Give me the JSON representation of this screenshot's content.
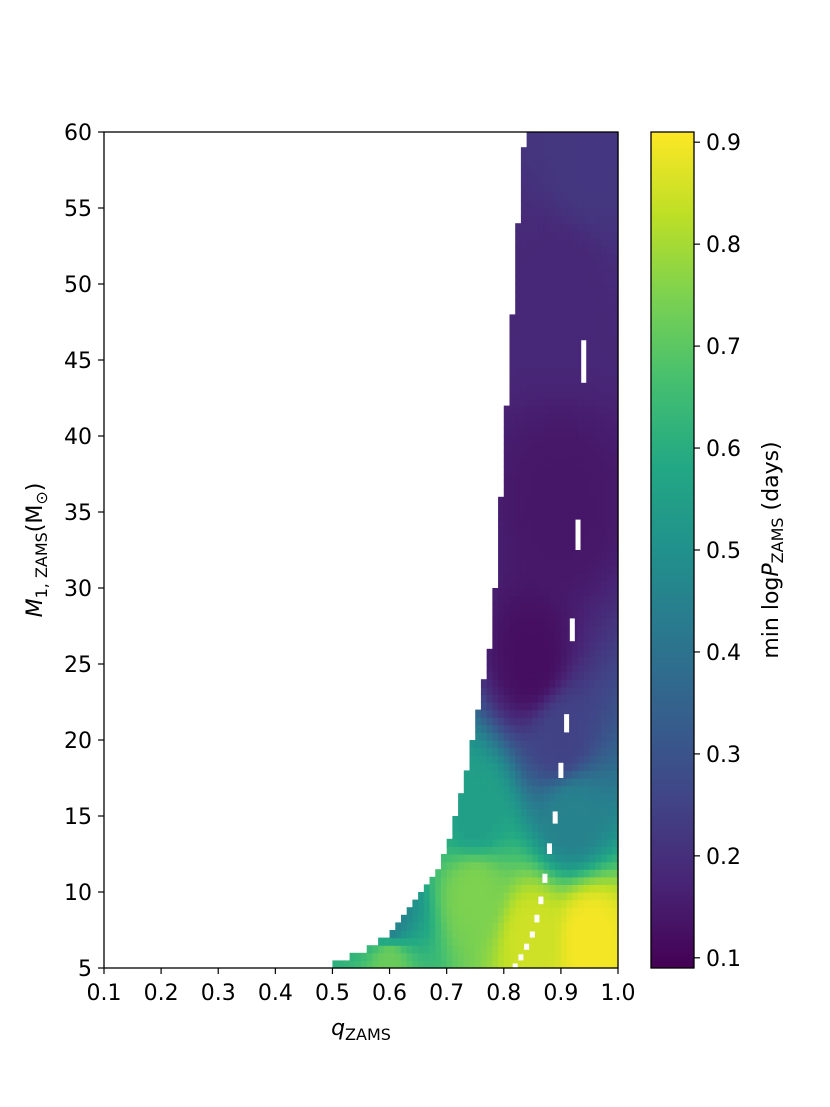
{
  "chart_data": {
    "type": "heatmap",
    "title": "",
    "xlabel": {
      "base": "q",
      "sub": "ZAMS"
    },
    "ylabel": {
      "base": "M",
      "sub": "1, ZAMS",
      "tail": "(M",
      "tailsub": "⊙",
      "close": ")"
    },
    "colorbar_label": {
      "pre": "min log",
      "base": "P",
      "sub": "ZAMS",
      "post": " (days)"
    },
    "colormap": "viridis",
    "xlim": [
      0.1,
      1.0
    ],
    "ylim": [
      5,
      60
    ],
    "clim": [
      0.09,
      0.91
    ],
    "x_ticks": [
      "0.1",
      "0.2",
      "0.3",
      "0.4",
      "0.5",
      "0.6",
      "0.7",
      "0.8",
      "0.9",
      "1.0"
    ],
    "x_tick_values": [
      0.1,
      0.2,
      0.3,
      0.4,
      0.5,
      0.6,
      0.7,
      0.8,
      0.9,
      1.0
    ],
    "y_ticks": [
      "5",
      "10",
      "15",
      "20",
      "25",
      "30",
      "35",
      "40",
      "45",
      "50",
      "55",
      "60"
    ],
    "y_tick_values": [
      5,
      10,
      15,
      20,
      25,
      30,
      35,
      40,
      45,
      50,
      55,
      60
    ],
    "colorbar_ticks": [
      "0.1",
      "0.2",
      "0.3",
      "0.4",
      "0.5",
      "0.6",
      "0.7",
      "0.8",
      "0.9"
    ],
    "colorbar_tick_values": [
      0.1,
      0.2,
      0.3,
      0.4,
      0.5,
      0.6,
      0.7,
      0.8,
      0.9
    ],
    "boundary": {
      "description": "minimum q with valid data, as a function of M1",
      "M1": [
        5,
        6,
        7,
        8,
        9,
        10,
        11,
        12,
        13,
        14,
        15,
        16,
        17,
        18,
        19,
        20,
        22,
        24,
        26,
        28,
        30,
        33,
        36,
        39,
        42,
        45,
        48,
        51,
        54,
        57,
        59,
        60
      ],
      "q_min": [
        0.49,
        0.55,
        0.59,
        0.62,
        0.64,
        0.66,
        0.675,
        0.69,
        0.7,
        0.71,
        0.715,
        0.72,
        0.73,
        0.735,
        0.74,
        0.745,
        0.755,
        0.765,
        0.775,
        0.78,
        0.785,
        0.79,
        0.795,
        0.8,
        0.805,
        0.81,
        0.815,
        0.82,
        0.825,
        0.83,
        0.835,
        0.84
      ]
    },
    "gaps": [
      {
        "q": 0.94,
        "M1": [
          43.5,
          46.3
        ]
      },
      {
        "q": 0.93,
        "M1": [
          32.5,
          34.5
        ]
      },
      {
        "q": 0.92,
        "M1": [
          26.5,
          28.0
        ]
      },
      {
        "q": 0.91,
        "M1": [
          20.5,
          21.7
        ]
      },
      {
        "q": 0.9,
        "M1": [
          17.5,
          18.5
        ]
      },
      {
        "q": 0.89,
        "M1": [
          14.5,
          15.3
        ]
      },
      {
        "q": 0.88,
        "M1": [
          12.5,
          13.2
        ]
      },
      {
        "q": 0.872,
        "M1": [
          10.6,
          11.2
        ]
      },
      {
        "q": 0.865,
        "M1": [
          9.2,
          9.7
        ]
      },
      {
        "q": 0.858,
        "M1": [
          8.0,
          8.5
        ]
      },
      {
        "q": 0.85,
        "M1": [
          7.0,
          7.4
        ]
      },
      {
        "q": 0.84,
        "M1": [
          6.2,
          6.6
        ]
      },
      {
        "q": 0.83,
        "M1": [
          5.5,
          5.9
        ]
      },
      {
        "q": 0.82,
        "M1": [
          5.0,
          5.3
        ]
      }
    ],
    "value_field_samples": [
      {
        "q": 0.95,
        "M1": 7,
        "min_logP": 0.9
      },
      {
        "q": 0.85,
        "M1": 7,
        "min_logP": 0.85
      },
      {
        "q": 0.6,
        "M1": 5.5,
        "min_logP": 0.72
      },
      {
        "q": 0.6,
        "M1": 8,
        "min_logP": 0.45
      },
      {
        "q": 0.75,
        "M1": 10,
        "min_logP": 0.75
      },
      {
        "q": 0.75,
        "M1": 15,
        "min_logP": 0.55
      },
      {
        "q": 0.92,
        "M1": 15,
        "min_logP": 0.45
      },
      {
        "q": 0.9,
        "M1": 20,
        "min_logP": 0.25
      },
      {
        "q": 0.85,
        "M1": 25,
        "min_logP": 0.12
      },
      {
        "q": 0.9,
        "M1": 35,
        "min_logP": 0.14
      },
      {
        "q": 0.9,
        "M1": 50,
        "min_logP": 0.18
      },
      {
        "q": 0.95,
        "M1": 58,
        "min_logP": 0.22
      }
    ]
  }
}
